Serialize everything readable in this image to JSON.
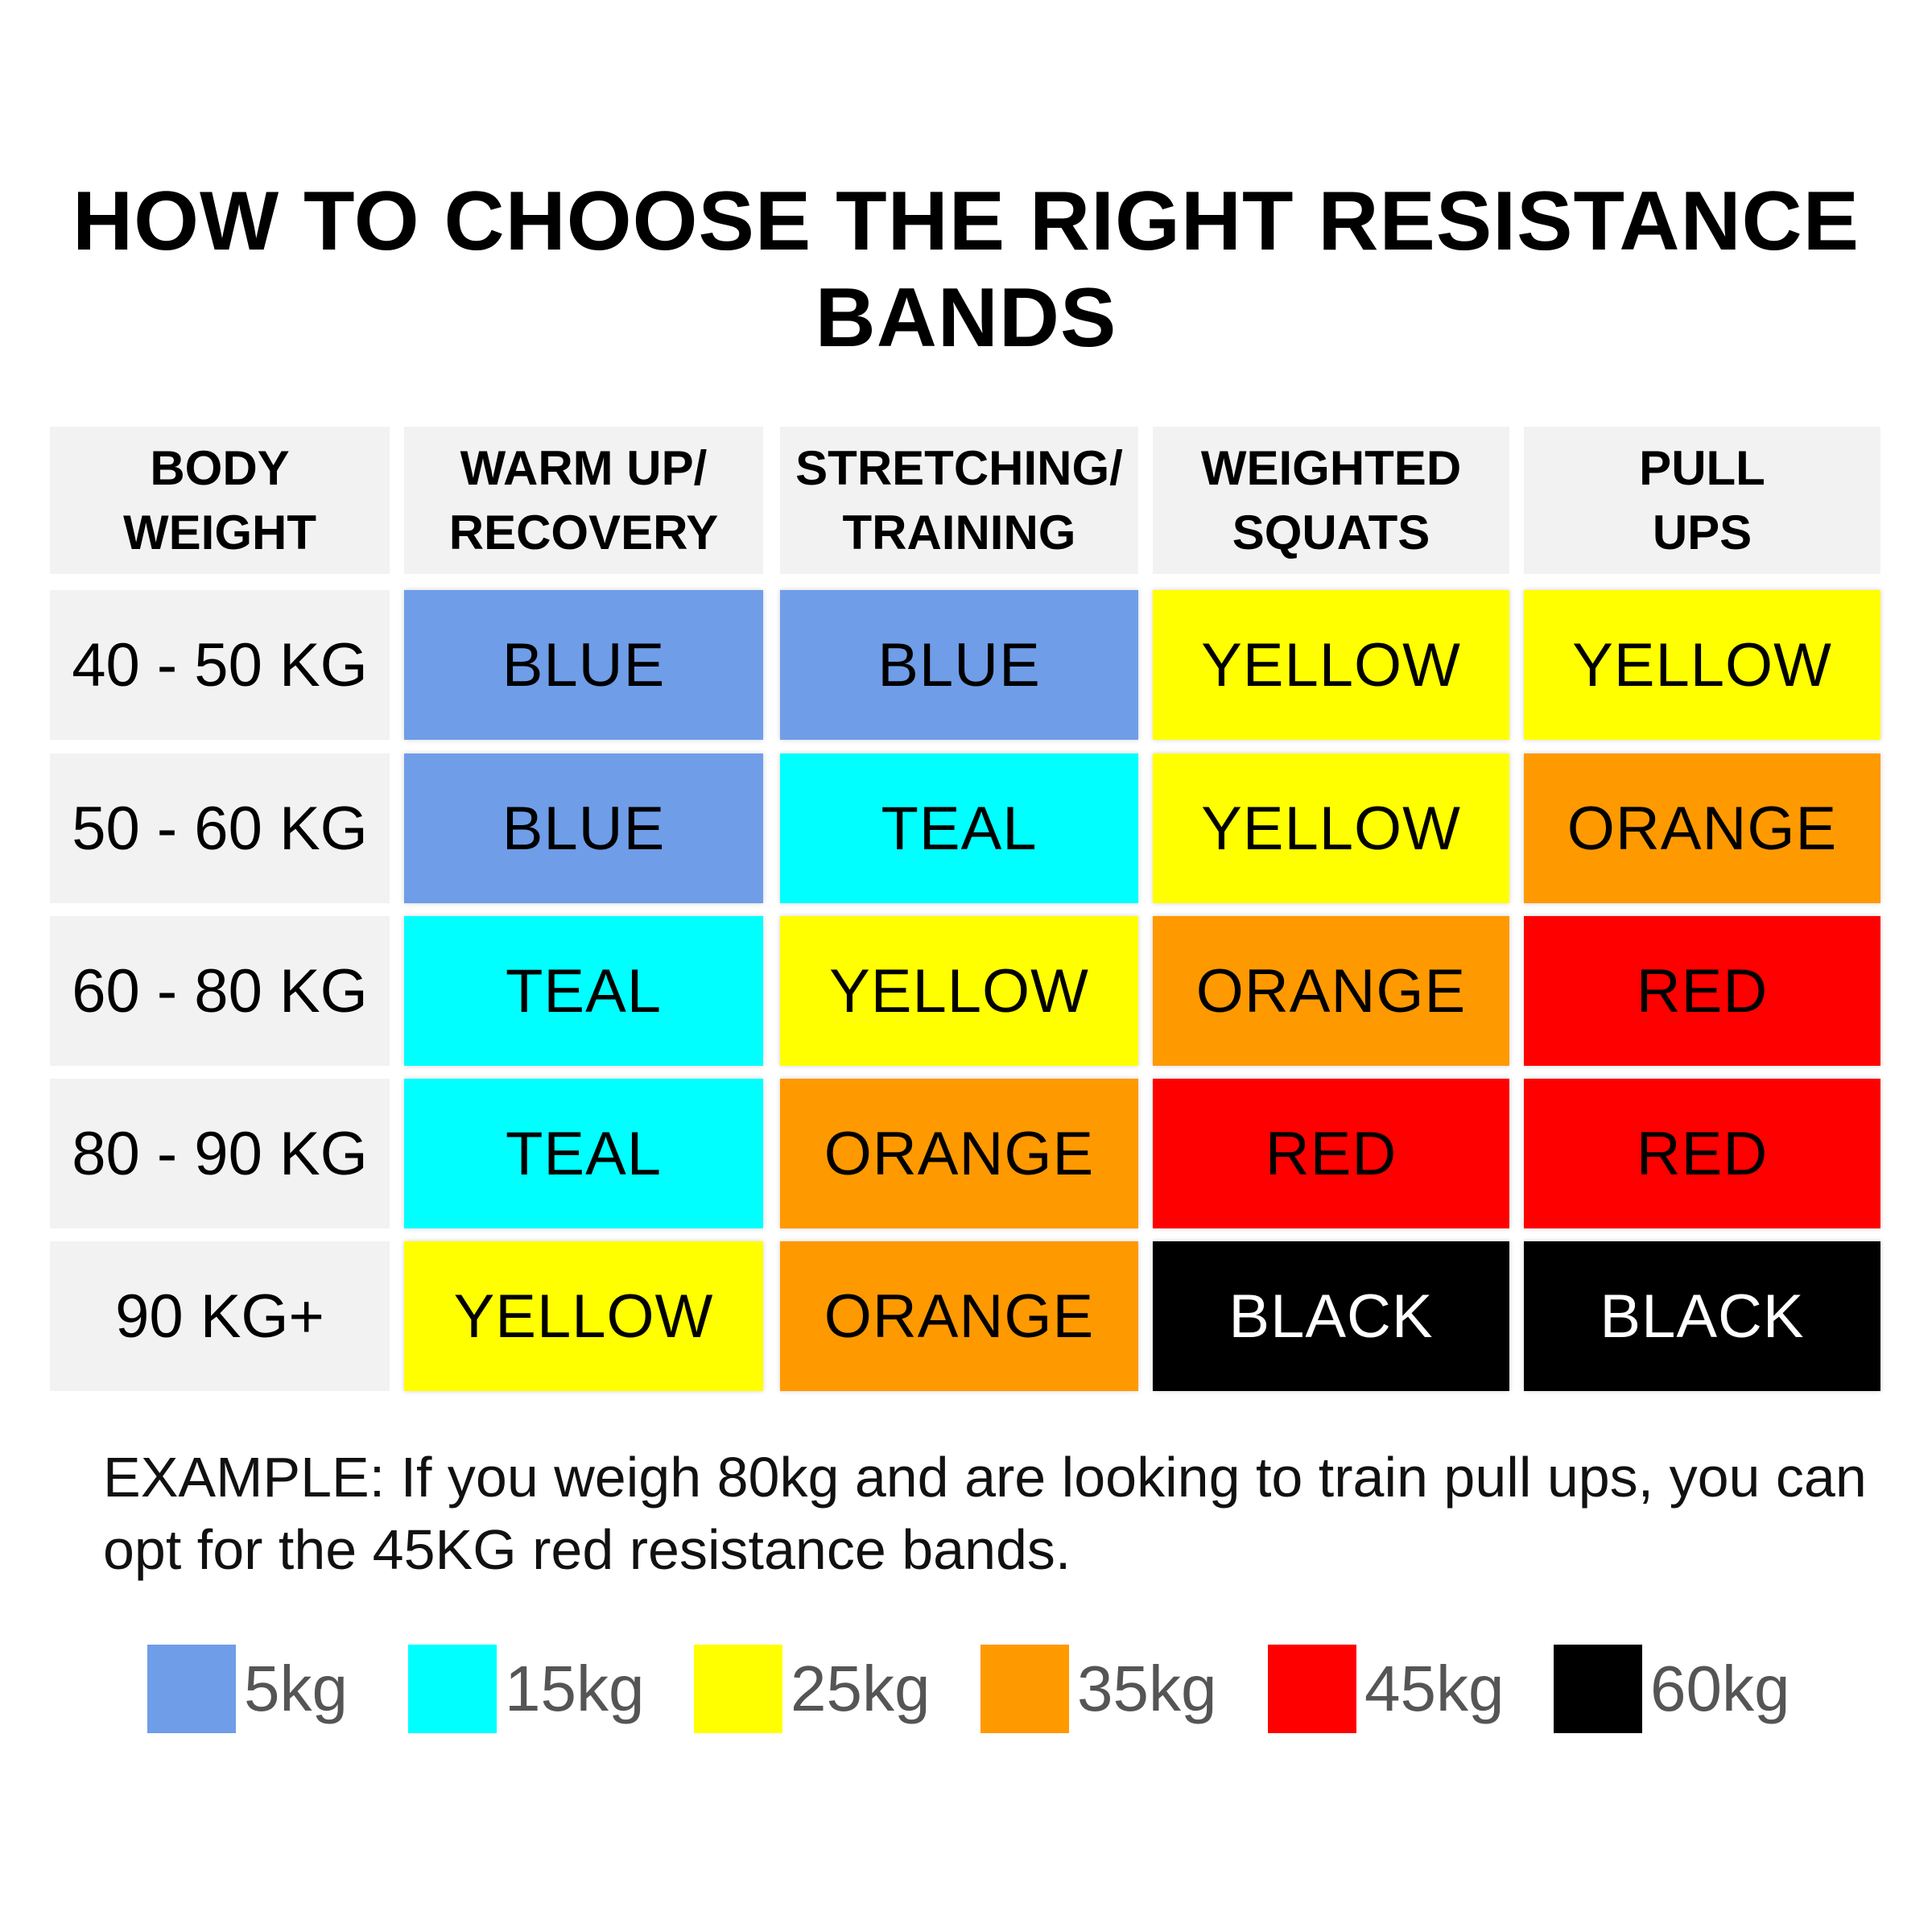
{
  "title": "HOW TO CHOOSE THE RIGHT RESISTANCE BANDS",
  "table": {
    "headers": [
      [
        "BODY",
        "WEIGHT"
      ],
      [
        "WARM UP/",
        "RECOVERY"
      ],
      [
        "STRETCHING/",
        "TRAINING"
      ],
      [
        "WEIGHTED",
        "SQUATS"
      ],
      [
        "PULL",
        "UPS"
      ]
    ],
    "rows": [
      {
        "weight": "40 - 50 KG",
        "bands": [
          "BLUE",
          "BLUE",
          "YELLOW",
          "YELLOW"
        ]
      },
      {
        "weight": "50 - 60 KG",
        "bands": [
          "BLUE",
          "TEAL",
          "YELLOW",
          "ORANGE"
        ]
      },
      {
        "weight": "60 - 80 KG",
        "bands": [
          "TEAL",
          "YELLOW",
          "ORANGE",
          "RED"
        ]
      },
      {
        "weight": "80 - 90 KG",
        "bands": [
          "TEAL",
          "ORANGE",
          "RED",
          "RED"
        ]
      },
      {
        "weight": "90 KG+",
        "bands": [
          "YELLOW",
          "ORANGE",
          "BLACK",
          "BLACK"
        ]
      }
    ]
  },
  "band_colors": {
    "BLUE": "#6f9de8",
    "TEAL": "#00ffff",
    "YELLOW": "#ffff00",
    "ORANGE": "#ff9900",
    "RED": "#ff0000",
    "BLACK": "#000000"
  },
  "example_text": "EXAMPLE: If you weigh 80kg and are looking to train pull ups, you can opt for the 45KG red resistance bands.",
  "legend": [
    {
      "label": "5kg",
      "color": "#6f9de8"
    },
    {
      "label": "15kg",
      "color": "#00ffff"
    },
    {
      "label": "25kg",
      "color": "#ffff00"
    },
    {
      "label": "35kg",
      "color": "#ff9900"
    },
    {
      "label": "45kg",
      "color": "#ff0000"
    },
    {
      "label": "60kg",
      "color": "#000000"
    }
  ]
}
